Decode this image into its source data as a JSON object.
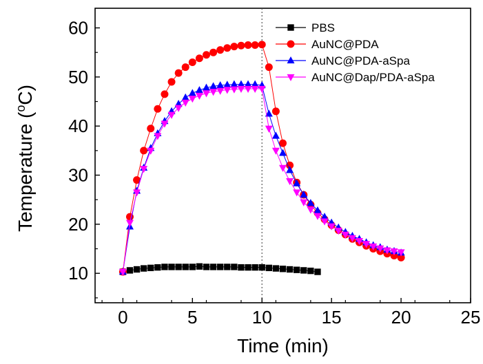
{
  "chart_data": {
    "type": "line",
    "xlabel": "Time (min)",
    "ylabel": "Temperature (",
    "ylabel_unit": "o",
    "ylabel_suffix": "C)",
    "xlim": [
      -2,
      25
    ],
    "ylim": [
      4,
      64
    ],
    "xticks": [
      0,
      5,
      10,
      15,
      20,
      25
    ],
    "yticks": [
      10,
      20,
      30,
      40,
      50,
      60
    ],
    "vline": 10,
    "legend_position": "top-right",
    "series": [
      {
        "name": "PBS",
        "color": "#000000",
        "marker": "square",
        "x": [
          0,
          0.5,
          1,
          1.5,
          2,
          2.5,
          3,
          3.5,
          4,
          4.5,
          5,
          5.5,
          6,
          6.5,
          7,
          7.5,
          8,
          8.5,
          9,
          9.5,
          10,
          10.5,
          11,
          11.5,
          12,
          12.5,
          13,
          13.5,
          14
        ],
        "y": [
          10.3,
          10.6,
          10.8,
          11.0,
          11.1,
          11.2,
          11.3,
          11.3,
          11.3,
          11.3,
          11.3,
          11.4,
          11.3,
          11.3,
          11.3,
          11.3,
          11.3,
          11.2,
          11.2,
          11.2,
          11.2,
          11.1,
          11.0,
          10.9,
          10.8,
          10.7,
          10.6,
          10.5,
          10.3
        ]
      },
      {
        "name": "AuNC@PDA",
        "color": "#ff0000",
        "marker": "circle",
        "x": [
          0,
          0.5,
          1,
          1.5,
          2,
          2.5,
          3,
          3.5,
          4,
          4.5,
          5,
          5.5,
          6,
          6.5,
          7,
          7.5,
          8,
          8.5,
          9,
          9.5,
          10,
          10.5,
          11,
          11.5,
          12,
          12.5,
          13,
          13.5,
          14,
          14.5,
          15,
          15.5,
          16,
          16.5,
          17,
          17.5,
          18,
          18.5,
          19,
          19.5,
          20
        ],
        "y": [
          10.3,
          21.5,
          29.0,
          35.0,
          39.5,
          43.5,
          46.5,
          49.0,
          50.8,
          52.0,
          53.0,
          53.8,
          54.5,
          55.0,
          55.5,
          55.9,
          56.2,
          56.4,
          56.5,
          56.5,
          56.6,
          52.0,
          43.0,
          36.5,
          32.0,
          28.5,
          26.0,
          24.0,
          22.3,
          21.0,
          19.8,
          18.8,
          17.9,
          17.0,
          16.3,
          15.6,
          15.0,
          14.5,
          14.0,
          13.6,
          13.2
        ]
      },
      {
        "name": "AuNC@PDA-aSpa",
        "color": "#0000ff",
        "marker": "triangle-up",
        "x": [
          0,
          0.5,
          1,
          1.5,
          2,
          2.5,
          3,
          3.5,
          4,
          4.5,
          5,
          5.5,
          6,
          6.5,
          7,
          7.5,
          8,
          8.5,
          9,
          9.5,
          10,
          10.5,
          11,
          11.5,
          12,
          12.5,
          13,
          13.5,
          14,
          14.5,
          15,
          15.5,
          16,
          16.5,
          17,
          17.5,
          18,
          18.5,
          19,
          19.5,
          20
        ],
        "y": [
          10.3,
          19.5,
          26.8,
          31.5,
          35.5,
          38.5,
          41.0,
          43.0,
          44.5,
          45.8,
          46.7,
          47.3,
          47.8,
          48.1,
          48.3,
          48.4,
          48.5,
          48.5,
          48.5,
          48.5,
          48.3,
          42.5,
          38.0,
          34.5,
          31.0,
          28.3,
          26.0,
          24.3,
          22.8,
          21.5,
          20.3,
          19.3,
          18.4,
          17.6,
          17.0,
          16.3,
          15.7,
          15.3,
          14.8,
          14.5,
          14.2
        ]
      },
      {
        "name": "AuNC@Dap/PDA-aSpa",
        "color": "#ff00ff",
        "marker": "triangle-down",
        "x": [
          0,
          0.5,
          1,
          1.5,
          2,
          2.5,
          3,
          3.5,
          4,
          4.5,
          5,
          5.5,
          6,
          6.5,
          7,
          7.5,
          8,
          8.5,
          9,
          9.5,
          10,
          10.5,
          11,
          11.5,
          12,
          12.5,
          13,
          13.5,
          14,
          14.5,
          15,
          15.5,
          16,
          16.5,
          17,
          17.5,
          18,
          18.5,
          19,
          19.5,
          20
        ],
        "y": [
          10.3,
          20.3,
          26.5,
          31.3,
          35.0,
          38.0,
          40.5,
          42.3,
          43.7,
          44.8,
          45.6,
          46.2,
          46.7,
          47.0,
          47.2,
          47.4,
          47.5,
          47.6,
          47.6,
          47.6,
          47.6,
          39.5,
          35.0,
          31.5,
          28.8,
          26.5,
          24.5,
          23.0,
          21.7,
          20.6,
          19.6,
          18.7,
          17.9,
          17.2,
          16.6,
          16.0,
          15.5,
          15.1,
          14.7,
          14.5,
          14.3
        ]
      }
    ]
  }
}
